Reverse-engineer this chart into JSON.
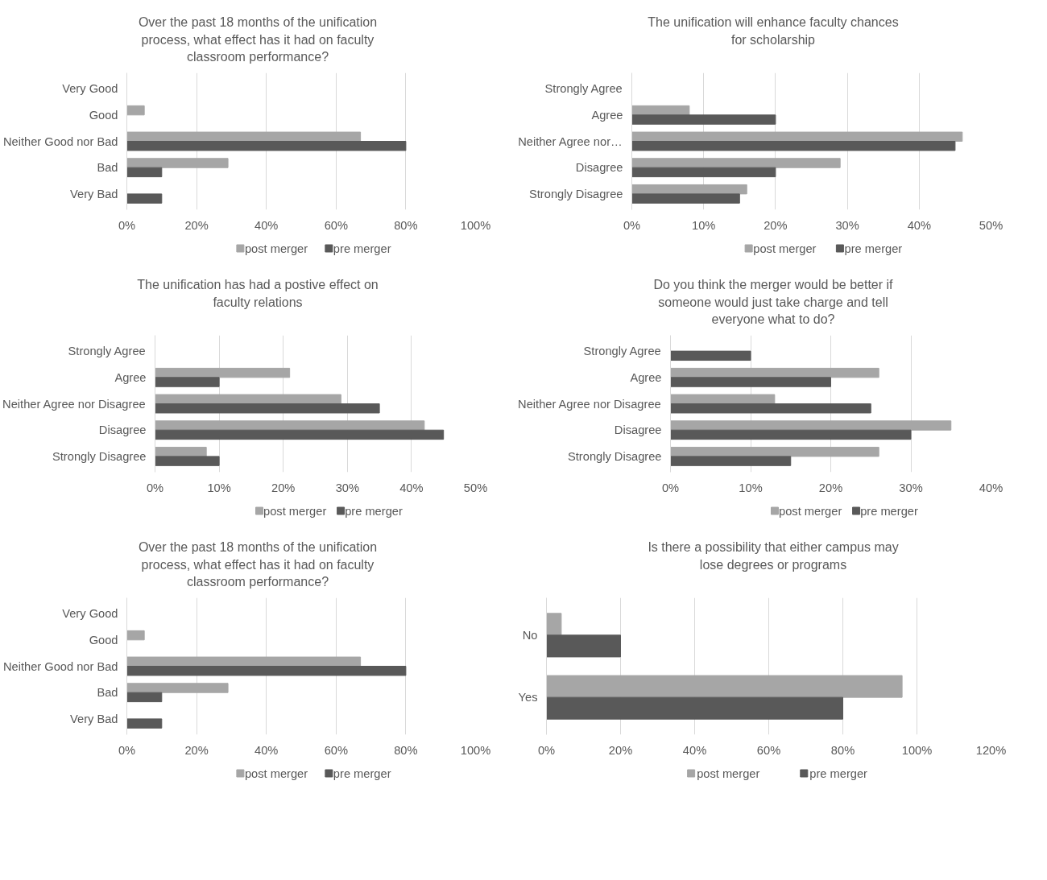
{
  "chart_data": [
    {
      "type": "bar",
      "orientation": "horizontal",
      "title": "Over the past 18 months of the unification process, what effect has it had on faculty classroom performance?",
      "categories": [
        "Very Good",
        "Good",
        "Neither Good nor Bad",
        "Bad",
        "Very Bad"
      ],
      "series": [
        {
          "name": "post merger",
          "color": "#a6a6a6",
          "values": [
            0,
            5,
            67,
            29,
            0
          ]
        },
        {
          "name": "pre merger",
          "color": "#595959",
          "values": [
            0,
            0,
            80,
            10,
            10
          ]
        }
      ],
      "xlim": [
        0,
        100
      ],
      "xticks": [
        {
          "value": 0,
          "label": "0%"
        },
        {
          "value": 20,
          "label": "20%"
        },
        {
          "value": 40,
          "label": "40%"
        },
        {
          "value": 60,
          "label": "60%"
        },
        {
          "value": 80,
          "label": "80%"
        },
        {
          "value": 100,
          "label": "100%"
        }
      ],
      "grid": "x",
      "legend": "bottom"
    },
    {
      "type": "bar",
      "orientation": "horizontal",
      "title": "The unification will enhance faculty chances for scholarship",
      "categories": [
        "Strongly Agree",
        "Agree",
        "Neither Agree nor…",
        "Disagree",
        "Strongly Disagree"
      ],
      "series": [
        {
          "name": "post merger",
          "color": "#a6a6a6",
          "values": [
            0,
            8,
            46,
            29,
            16
          ]
        },
        {
          "name": "pre merger",
          "color": "#595959",
          "values": [
            0,
            20,
            45,
            20,
            15
          ]
        }
      ],
      "xlim": [
        0,
        50
      ],
      "xticks": [
        {
          "value": 0,
          "label": "0%"
        },
        {
          "value": 10,
          "label": "10%"
        },
        {
          "value": 20,
          "label": "20%"
        },
        {
          "value": 30,
          "label": "30%"
        },
        {
          "value": 40,
          "label": "40%"
        },
        {
          "value": 50,
          "label": "50%"
        }
      ],
      "grid": "x",
      "legend": "bottom"
    },
    {
      "type": "bar",
      "orientation": "horizontal",
      "title": "The unification has had a postive effect on faculty relations",
      "categories": [
        "Strongly Agree",
        "Agree",
        "Neither Agree nor Disagree",
        "Disagree",
        "Strongly Disagree"
      ],
      "series": [
        {
          "name": "post merger",
          "color": "#a6a6a6",
          "values": [
            0,
            21,
            29,
            42,
            8
          ]
        },
        {
          "name": "pre merger",
          "color": "#595959",
          "values": [
            0,
            10,
            35,
            45,
            10
          ]
        }
      ],
      "xlim": [
        0,
        50
      ],
      "xticks": [
        {
          "value": 0,
          "label": "0%"
        },
        {
          "value": 10,
          "label": "10%"
        },
        {
          "value": 20,
          "label": "20%"
        },
        {
          "value": 30,
          "label": "30%"
        },
        {
          "value": 40,
          "label": "40%"
        },
        {
          "value": 50,
          "label": "50%"
        }
      ],
      "grid": "x",
      "legend": "bottom"
    },
    {
      "type": "bar",
      "orientation": "horizontal",
      "title": "Do you think the merger would be better if someone would just take charge and tell everyone what to do?",
      "categories": [
        "Strongly Agree",
        "Agree",
        "Neither Agree nor Disagree",
        "Disagree",
        "Strongly Disagree"
      ],
      "series": [
        {
          "name": "post merger",
          "color": "#a6a6a6",
          "values": [
            0,
            26,
            13,
            35,
            26
          ]
        },
        {
          "name": "pre merger",
          "color": "#595959",
          "values": [
            10,
            20,
            25,
            30,
            15
          ]
        }
      ],
      "xlim": [
        0,
        40
      ],
      "xticks": [
        {
          "value": 0,
          "label": "0%"
        },
        {
          "value": 10,
          "label": "10%"
        },
        {
          "value": 20,
          "label": "20%"
        },
        {
          "value": 30,
          "label": "30%"
        },
        {
          "value": 40,
          "label": "40%"
        }
      ],
      "grid": "x",
      "legend": "bottom"
    },
    {
      "type": "bar",
      "orientation": "horizontal",
      "title": "Over the past 18 months of the unification process, what effect has it had on faculty classroom performance?",
      "categories": [
        "Very Good",
        "Good",
        "Neither Good nor Bad",
        "Bad",
        "Very Bad"
      ],
      "series": [
        {
          "name": "post merger",
          "color": "#a6a6a6",
          "values": [
            0,
            5,
            67,
            29,
            0
          ]
        },
        {
          "name": "pre merger",
          "color": "#595959",
          "values": [
            0,
            0,
            80,
            10,
            10
          ]
        }
      ],
      "xlim": [
        0,
        100
      ],
      "xticks": [
        {
          "value": 0,
          "label": "0%"
        },
        {
          "value": 20,
          "label": "20%"
        },
        {
          "value": 40,
          "label": "40%"
        },
        {
          "value": 60,
          "label": "60%"
        },
        {
          "value": 80,
          "label": "80%"
        },
        {
          "value": 100,
          "label": "100%"
        }
      ],
      "grid": "x",
      "legend": "bottom"
    },
    {
      "type": "bar",
      "orientation": "horizontal",
      "title": "Is there a possibility that either campus may lose degrees or programs",
      "categories": [
        "No",
        "Yes"
      ],
      "series": [
        {
          "name": "post merger",
          "color": "#a6a6a6",
          "values": [
            4,
            96
          ]
        },
        {
          "name": "pre merger",
          "color": "#595959",
          "values": [
            20,
            80
          ]
        }
      ],
      "xlim": [
        0,
        120
      ],
      "xticks": [
        {
          "value": 0,
          "label": "0%"
        },
        {
          "value": 20,
          "label": "20%"
        },
        {
          "value": 40,
          "label": "40%"
        },
        {
          "value": 60,
          "label": "60%"
        },
        {
          "value": 80,
          "label": "80%"
        },
        {
          "value": 100,
          "label": "100%"
        },
        {
          "value": 120,
          "label": "120%"
        }
      ],
      "grid": "x",
      "legend": "bottom"
    }
  ]
}
